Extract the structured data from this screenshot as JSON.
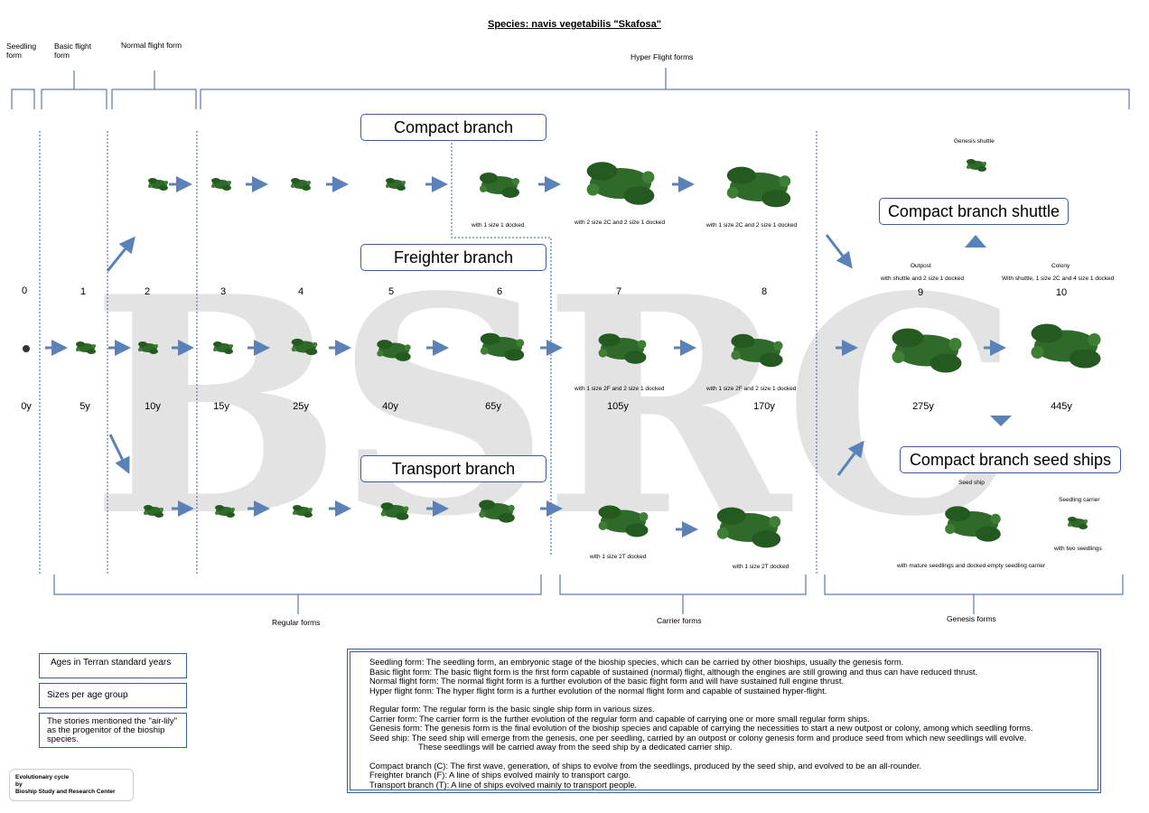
{
  "title": "Species: navis vegetabilis \"Skafosa\"",
  "stages": {
    "seedling": "Seedling form",
    "basic": "Basic flight form",
    "normal": "Normal flight form",
    "hyper": "Hyper Flight forms"
  },
  "branches": {
    "compact": "Compact branch",
    "freighter": "Freighter branch",
    "transport": "Transport branch",
    "shuttle": "Compact branch shuttle",
    "seed": "Compact branch seed ships"
  },
  "age_groups": [
    "0",
    "1",
    "2",
    "3",
    "4",
    "5",
    "6",
    "7",
    "8",
    "9",
    "10"
  ],
  "ages": [
    "0y",
    "5y",
    "10y",
    "15y",
    "25y",
    "40y",
    "65y",
    "105y",
    "170y",
    "275y",
    "445y"
  ],
  "captions": {
    "c6": "with 1 size 1 docked",
    "c7": "with 2 size 2C and 2 size 1 docked",
    "c8": "with 1 size 2C and 2 size 1 docked",
    "genesis_shuttle": "Genesis shuttle",
    "outpost": "Outpost",
    "outpost_sub": "with shuttle and 2 size 1 docked",
    "colony": "Colony",
    "colony_sub": "With shuttle, 1 size 2C and 4 size 1 docked",
    "f7": "with 1 size 2F and 2 size 1 docked",
    "f8": "with 1 size 2F and 2 size 1 docked",
    "t7": "with 1 size 2T docked",
    "t8": "with 1 size 2T docked",
    "seed_ship": "Seed ship",
    "seedling_carrier": "Seedling carrier",
    "with_two": "with two seedlings",
    "mature": "with mature seedlings and docked empty seedling carrier"
  },
  "groups": {
    "regular": "Regular forms",
    "carrier": "Carrier forms",
    "genesis": "Genesis forms"
  },
  "legend": {
    "ages": "Ages in Terran standard years",
    "sizes": "Sizes per age group",
    "stories": "The stories mentioned the \"air-lily\" as the progenitor of the bioship species."
  },
  "description": {
    "l1": "Seedling form: The seedling form,  an embryonic stage of the bioship species, which can be carried by other bioships, usually the genesis form.",
    "l2": "Basic flight  form: The basic flight form is the first form capable of sustained (normal) flight, although the engines are still growing and thus can have reduced thrust.",
    "l3": "Normal flight form: The normal flight form is a further evolution of the basic flight form and will have sustained full engine thrust.",
    "l4": "Hyper flight form: The hyper flight form is a further evolution of the normal flight form and capable of sustained hyper-flight.",
    "l5": "Regular form: The regular form is the basic single ship form in various sizes.",
    "l6": "Carrier form: The carrier form is the further evolution of the regular form and capable of carrying one or more small regular form ships.",
    "l7": "Genesis form: The genesis form is the final evolution of the bioship species and capable of carrying the necessities to start a new outpost or colony, among which seedling forms.",
    "l8": "Seed ship: The seed ship will emerge from the genesis, one per seedling, carried by an outpost or colony genesis form and produce seed from which new seedlings will evolve.",
    "l9": "These seedlings will be carried away from the seed ship by a dedicated carrier ship.",
    "l10": "Compact branch (C): The first wave, generation, of ships to evolve from the seedlings, produced by the seed ship, and evolved to be an all-rounder.",
    "l11": "Freighter  branch (F): A line of ships evolved mainly to transport cargo.",
    "l12": "Transport branch (T): A line of ships evolved mainly to transport people."
  },
  "credit": {
    "l1": "Evolutionairy cycle",
    "l2": "by",
    "l3": "Bioship Study and Research Center"
  },
  "watermark": "BSRC",
  "colors": {
    "accent": "#3a5f9a",
    "arrow": "#5b82b8",
    "ship": "#2f6a2a"
  }
}
